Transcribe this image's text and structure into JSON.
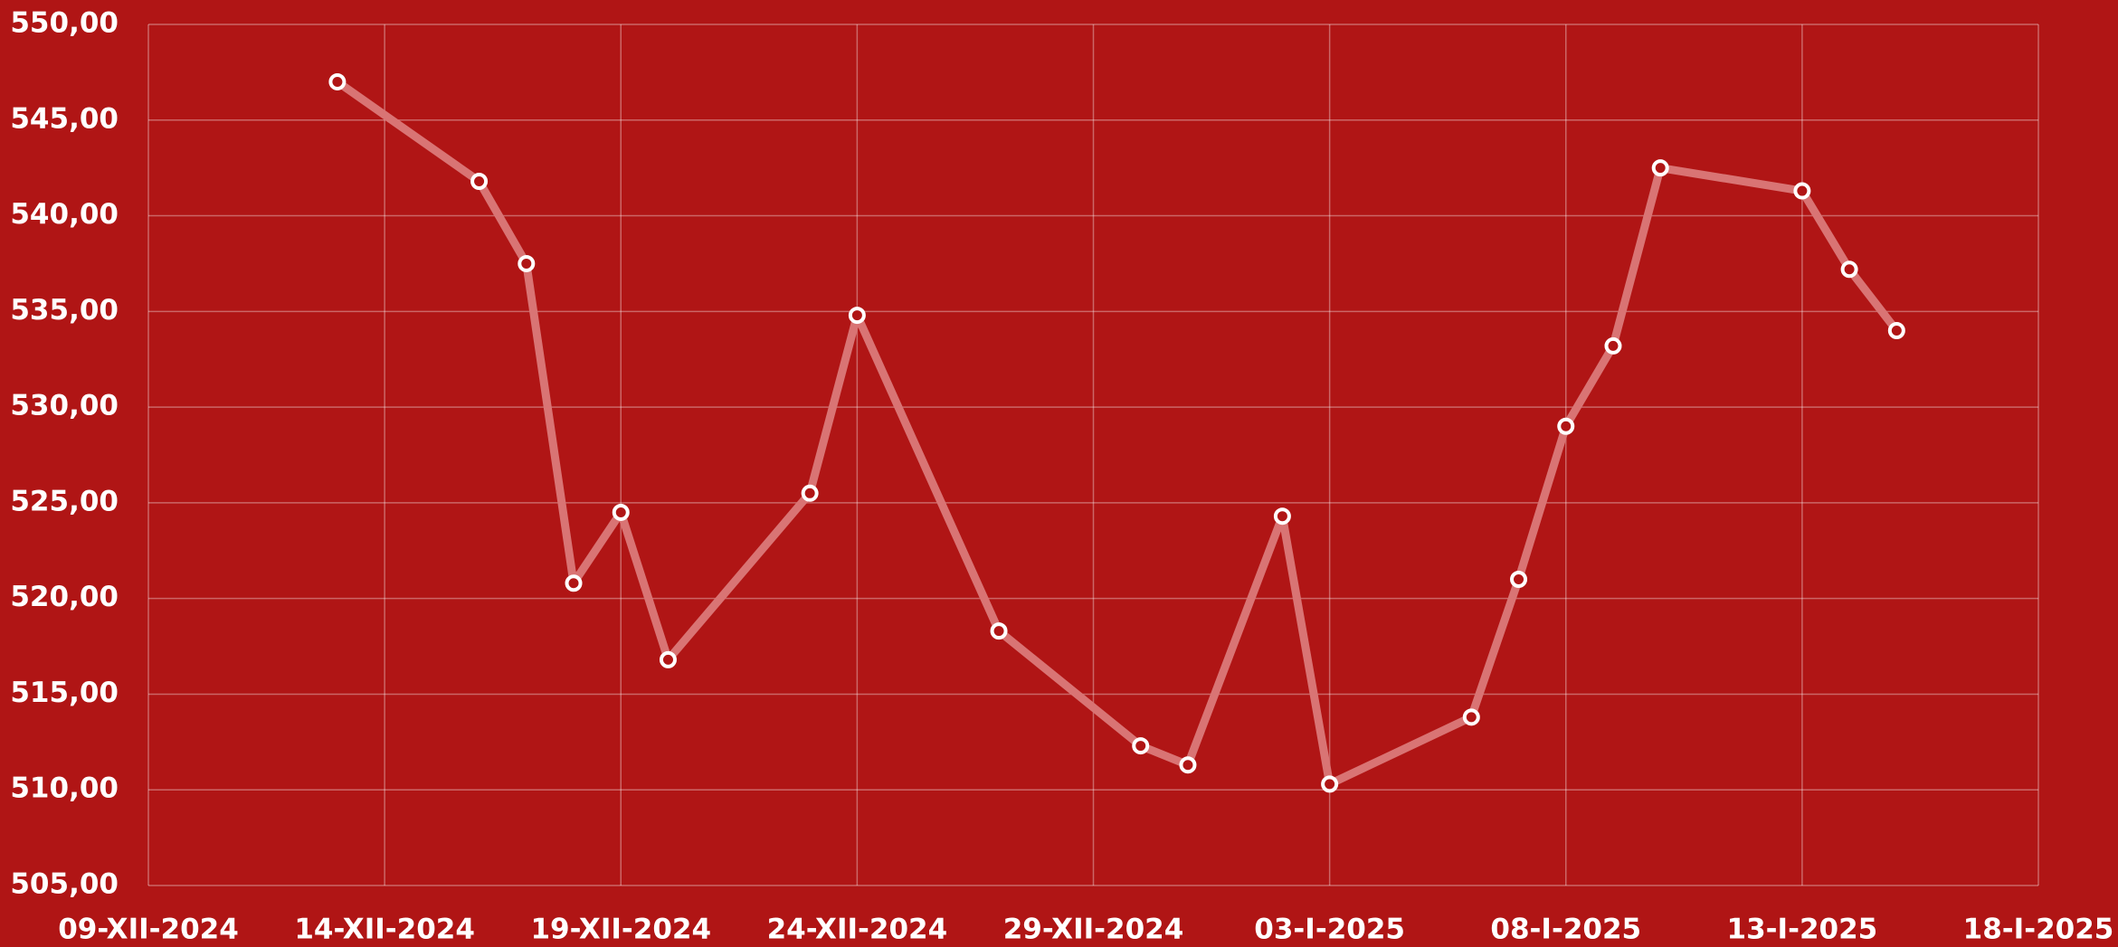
{
  "chart_data": {
    "type": "line",
    "background": "#b01515",
    "grid": true,
    "x": [
      "2024-12-13",
      "2024-12-16",
      "2024-12-17",
      "2024-12-18",
      "2024-12-19",
      "2024-12-20",
      "2024-12-23",
      "2024-12-24",
      "2024-12-27",
      "2024-12-30",
      "2024-12-31",
      "2025-01-02",
      "2025-01-03",
      "2025-01-06",
      "2025-01-07",
      "2025-01-08",
      "2025-01-09",
      "2025-01-10",
      "2025-01-13",
      "2025-01-14",
      "2025-01-15"
    ],
    "series": [
      {
        "color": "#d97474",
        "marker_color": "#ffffff",
        "values": [
          547.0,
          541.8,
          537.5,
          520.8,
          524.5,
          516.8,
          525.5,
          534.8,
          518.3,
          512.3,
          511.3,
          524.3,
          510.3,
          513.8,
          521.0,
          529.0,
          533.2,
          542.5,
          541.3,
          537.2,
          534.0
        ]
      }
    ],
    "xlim": [
      "2024-12-09",
      "2025-01-18"
    ],
    "xticks": [
      {
        "value": "2024-12-09",
        "label": "09-XII-2024"
      },
      {
        "value": "2024-12-14",
        "label": "14-XII-2024"
      },
      {
        "value": "2024-12-19",
        "label": "19-XII-2024"
      },
      {
        "value": "2024-12-24",
        "label": "24-XII-2024"
      },
      {
        "value": "2024-12-29",
        "label": "29-XII-2024"
      },
      {
        "value": "2025-01-03",
        "label": "03-I-2025"
      },
      {
        "value": "2025-01-08",
        "label": "08-I-2025"
      },
      {
        "value": "2025-01-13",
        "label": "13-I-2025"
      },
      {
        "value": "2025-01-18",
        "label": "18-I-2025"
      }
    ],
    "ylim": [
      505,
      550
    ],
    "yticks": [
      {
        "value": 505,
        "label": "505,00"
      },
      {
        "value": 510,
        "label": "510,00"
      },
      {
        "value": 515,
        "label": "515,00"
      },
      {
        "value": 520,
        "label": "520,00"
      },
      {
        "value": 525,
        "label": "525,00"
      },
      {
        "value": 530,
        "label": "530,00"
      },
      {
        "value": 535,
        "label": "535,00"
      },
      {
        "value": 540,
        "label": "540,00"
      },
      {
        "value": 545,
        "label": "545,00"
      },
      {
        "value": 550,
        "label": "550,00"
      }
    ]
  }
}
